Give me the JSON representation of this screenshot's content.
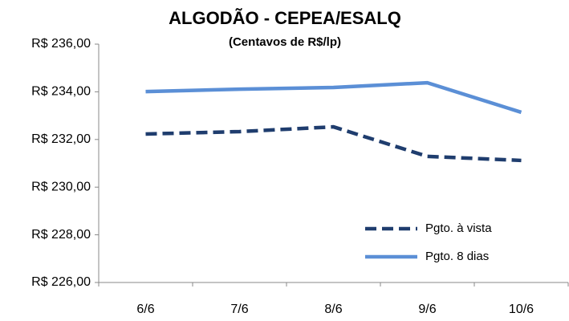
{
  "chart_data": {
    "type": "line",
    "title": "ALGODÃO - CEPEA/ESALQ",
    "subtitle": "(Centavos de R$/lp)",
    "categories": [
      "6/6",
      "7/6",
      "8/6",
      "9/6",
      "10/6"
    ],
    "series": [
      {
        "name": "Pgto. à vista",
        "color": "#1f3d6e",
        "dash": true,
        "values": [
          232.23,
          232.33,
          232.53,
          231.29,
          231.12
        ]
      },
      {
        "name": "Pgto. 8 dias",
        "color": "#5b8fd6",
        "dash": false,
        "values": [
          234.01,
          234.11,
          234.18,
          234.38,
          233.14
        ]
      }
    ],
    "ylim": [
      226,
      236
    ],
    "yticks": [
      {
        "value": 226,
        "label": "R$ 226,00"
      },
      {
        "value": 228,
        "label": "R$ 228,00"
      },
      {
        "value": 230,
        "label": "R$ 230,00"
      },
      {
        "value": 232,
        "label": "R$ 232,00"
      },
      {
        "value": 234,
        "label": "R$ 234,00"
      },
      {
        "value": 236,
        "label": "R$ 236,00"
      }
    ],
    "grid": false,
    "legend": "lower-right"
  }
}
